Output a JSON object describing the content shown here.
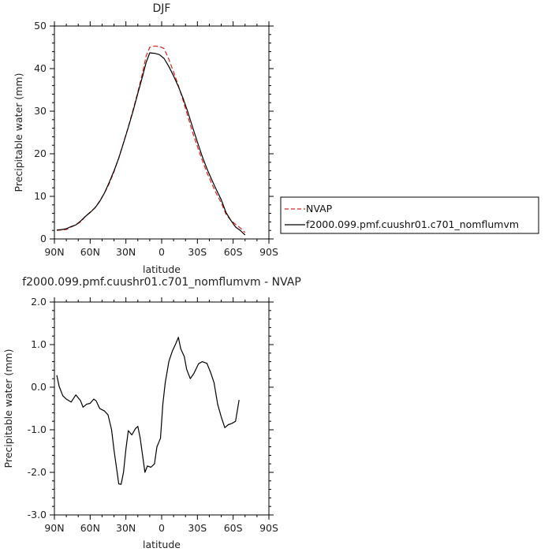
{
  "chart_data": [
    {
      "type": "line",
      "title": "DJF",
      "xlabel": "latitude",
      "ylabel": "Precipitable water  (mm)",
      "x_tick_labels": [
        "90N",
        "60N",
        "30N",
        "0",
        "30S",
        "60S",
        "90S"
      ],
      "x_tick_values": [
        -90,
        -60,
        -30,
        0,
        30,
        60,
        90
      ],
      "xlim": [
        -90,
        90
      ],
      "ylim": [
        0,
        50
      ],
      "y_ticks": [
        0,
        10,
        20,
        30,
        40,
        50
      ],
      "y_tick_labels": [
        "0",
        "10",
        "20",
        "30",
        "40",
        "50"
      ],
      "grid": false,
      "legend_position": "right",
      "series": [
        {
          "name": "NVAP",
          "color": "#e0201c",
          "dash": "dashed",
          "points": [
            [
              -88,
              2.0
            ],
            [
              -84,
              2.1
            ],
            [
              -80,
              2.2
            ],
            [
              -76,
              2.8
            ],
            [
              -72,
              3.3
            ],
            [
              -68,
              4.0
            ],
            [
              -64,
              5.3
            ],
            [
              -60,
              6.3
            ],
            [
              -56,
              7.3
            ],
            [
              -52,
              8.9
            ],
            [
              -48,
              10.8
            ],
            [
              -44,
              13.0
            ],
            [
              -40,
              15.8
            ],
            [
              -36,
              19.0
            ],
            [
              -32,
              22.6
            ],
            [
              -28,
              26.3
            ],
            [
              -24,
              30.3
            ],
            [
              -20,
              34.5
            ],
            [
              -16,
              39.0
            ],
            [
              -13,
              43.0
            ],
            [
              -10,
              45.0
            ],
            [
              -6,
              45.3
            ],
            [
              -2,
              45.2
            ],
            [
              2,
              44.7
            ],
            [
              6,
              42.2
            ],
            [
              10,
              39.2
            ],
            [
              14,
              36.0
            ],
            [
              18,
              32.5
            ],
            [
              22,
              28.8
            ],
            [
              26,
              25.0
            ],
            [
              30,
              21.7
            ],
            [
              34,
              18.5
            ],
            [
              38,
              15.6
            ],
            [
              42,
              13.0
            ],
            [
              46,
              10.6
            ],
            [
              50,
              8.5
            ],
            [
              54,
              5.8
            ],
            [
              58,
              4.4
            ],
            [
              62,
              3.4
            ],
            [
              66,
              2.6
            ],
            [
              70,
              1.5
            ]
          ]
        },
        {
          "name": "f2000.099.pmf.cuushr01.c701_nomflumvm",
          "color": "#000000",
          "dash": "solid",
          "points": [
            [
              -88,
              2.1
            ],
            [
              -84,
              2.2
            ],
            [
              -80,
              2.4
            ],
            [
              -76,
              2.9
            ],
            [
              -72,
              3.3
            ],
            [
              -68,
              4.2
            ],
            [
              -64,
              5.3
            ],
            [
              -60,
              6.2
            ],
            [
              -56,
              7.3
            ],
            [
              -52,
              8.8
            ],
            [
              -48,
              10.8
            ],
            [
              -44,
              13.3
            ],
            [
              -40,
              16.0
            ],
            [
              -36,
              19.0
            ],
            [
              -32,
              22.5
            ],
            [
              -28,
              26.2
            ],
            [
              -24,
              30.0
            ],
            [
              -20,
              34.2
            ],
            [
              -16,
              38.2
            ],
            [
              -13,
              41.5
            ],
            [
              -10,
              43.7
            ],
            [
              -6,
              43.6
            ],
            [
              -2,
              43.3
            ],
            [
              2,
              42.4
            ],
            [
              6,
              40.5
            ],
            [
              10,
              38.3
            ],
            [
              14,
              35.8
            ],
            [
              18,
              33.0
            ],
            [
              22,
              29.8
            ],
            [
              26,
              26.2
            ],
            [
              30,
              22.8
            ],
            [
              34,
              19.4
            ],
            [
              38,
              16.5
            ],
            [
              42,
              13.9
            ],
            [
              46,
              11.5
            ],
            [
              50,
              9.2
            ],
            [
              54,
              6.2
            ],
            [
              58,
              4.4
            ],
            [
              62,
              2.8
            ],
            [
              66,
              2.0
            ],
            [
              70,
              0.9
            ]
          ]
        }
      ]
    },
    {
      "type": "line",
      "title": "f2000.099.pmf.cuushr01.c701_nomflumvm  -  NVAP",
      "xlabel": "latitude",
      "ylabel": "Precipitable water  (mm)",
      "x_tick_labels": [
        "90N",
        "60N",
        "30N",
        "0",
        "30S",
        "60S",
        "90S"
      ],
      "x_tick_values": [
        -90,
        -60,
        -30,
        0,
        30,
        60,
        90
      ],
      "xlim": [
        -90,
        90
      ],
      "ylim": [
        -3.0,
        2.0
      ],
      "y_ticks": [
        -3,
        -2,
        -1,
        0,
        1,
        2
      ],
      "y_tick_labels": [
        "-3.0",
        "-2.0",
        "-1.0",
        "0.0",
        "1.0",
        "2.0"
      ],
      "grid": false,
      "series": [
        {
          "color": "#000000",
          "dash": "solid",
          "points": [
            [
              -88,
              0.28
            ],
            [
              -86,
              0.02
            ],
            [
              -83,
              -0.2
            ],
            [
              -80,
              -0.28
            ],
            [
              -76,
              -0.35
            ],
            [
              -72,
              -0.18
            ],
            [
              -68,
              -0.32
            ],
            [
              -66,
              -0.47
            ],
            [
              -63,
              -0.4
            ],
            [
              -60,
              -0.38
            ],
            [
              -57,
              -0.28
            ],
            [
              -55,
              -0.32
            ],
            [
              -52,
              -0.5
            ],
            [
              -48,
              -0.56
            ],
            [
              -45,
              -0.65
            ],
            [
              -42,
              -1.0
            ],
            [
              -40,
              -1.48
            ],
            [
              -36,
              -2.27
            ],
            [
              -34,
              -2.28
            ],
            [
              -32,
              -2.0
            ],
            [
              -30,
              -1.45
            ],
            [
              -28,
              -1.02
            ],
            [
              -25,
              -1.12
            ],
            [
              -22,
              -0.97
            ],
            [
              -20,
              -0.92
            ],
            [
              -18,
              -1.2
            ],
            [
              -14,
              -2.0
            ],
            [
              -12,
              -1.85
            ],
            [
              -9,
              -1.88
            ],
            [
              -6,
              -1.8
            ],
            [
              -4,
              -1.4
            ],
            [
              -1,
              -1.2
            ],
            [
              1,
              -0.4
            ],
            [
              3,
              0.1
            ],
            [
              6,
              0.6
            ],
            [
              9,
              0.85
            ],
            [
              12,
              1.03
            ],
            [
              14,
              1.17
            ],
            [
              16,
              0.9
            ],
            [
              19,
              0.72
            ],
            [
              21,
              0.42
            ],
            [
              24,
              0.2
            ],
            [
              27,
              0.32
            ],
            [
              31,
              0.55
            ],
            [
              34,
              0.6
            ],
            [
              38,
              0.56
            ],
            [
              41,
              0.35
            ],
            [
              44,
              0.1
            ],
            [
              47,
              -0.4
            ],
            [
              50,
              -0.7
            ],
            [
              53,
              -0.95
            ],
            [
              56,
              -0.88
            ],
            [
              59,
              -0.85
            ],
            [
              62,
              -0.8
            ],
            [
              65,
              -0.3
            ]
          ]
        }
      ]
    }
  ]
}
